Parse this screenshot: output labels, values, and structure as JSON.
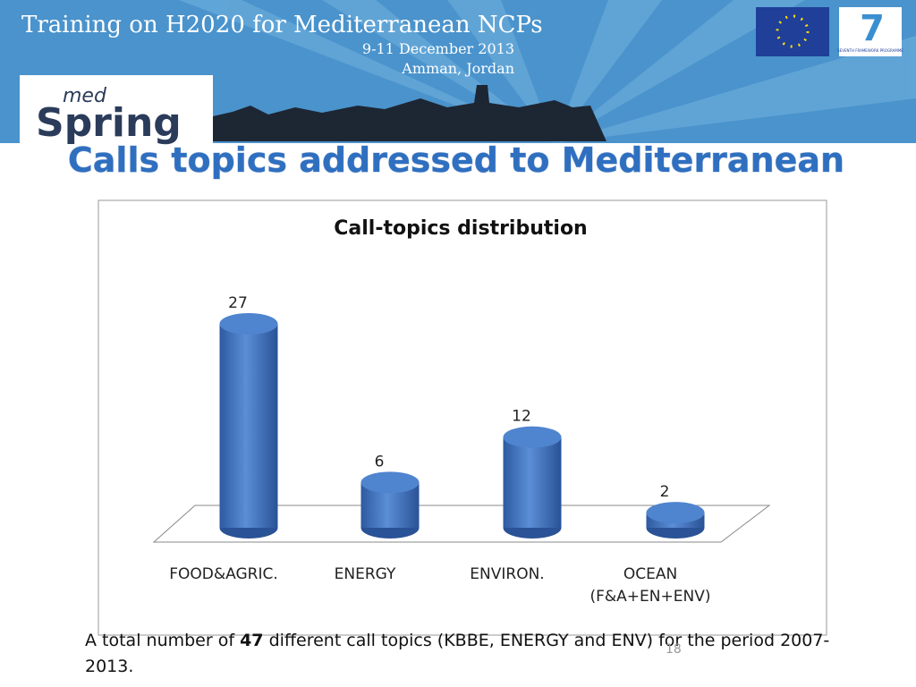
{
  "header": {
    "title": "Training on H2020 for Mediterranean NCPs",
    "date": "9-11 December 2013",
    "place": "Amman, Jordan",
    "logo_top": "med",
    "logo_main": "Spring",
    "fp7_text": "SEVENTH FRAMEWORK PROGRAMME"
  },
  "slide_title": "Calls topics addressed to  Mediterranean",
  "chart_data": {
    "type": "bar3d",
    "title": "Call-topics distribution",
    "categories": [
      "FOOD&AGRIC.",
      "ENERGY",
      "ENVIRON.",
      "OCEAN (F&A+EN+ENV)"
    ],
    "values": [
      27,
      6,
      12,
      2
    ],
    "color": "#3f73c0"
  },
  "footnote": {
    "before": "A total number of ",
    "bold": "47",
    "after": " different call topics (KBBE, ENERGY and ENV) for the period 2007-2013."
  },
  "page_number": "18"
}
